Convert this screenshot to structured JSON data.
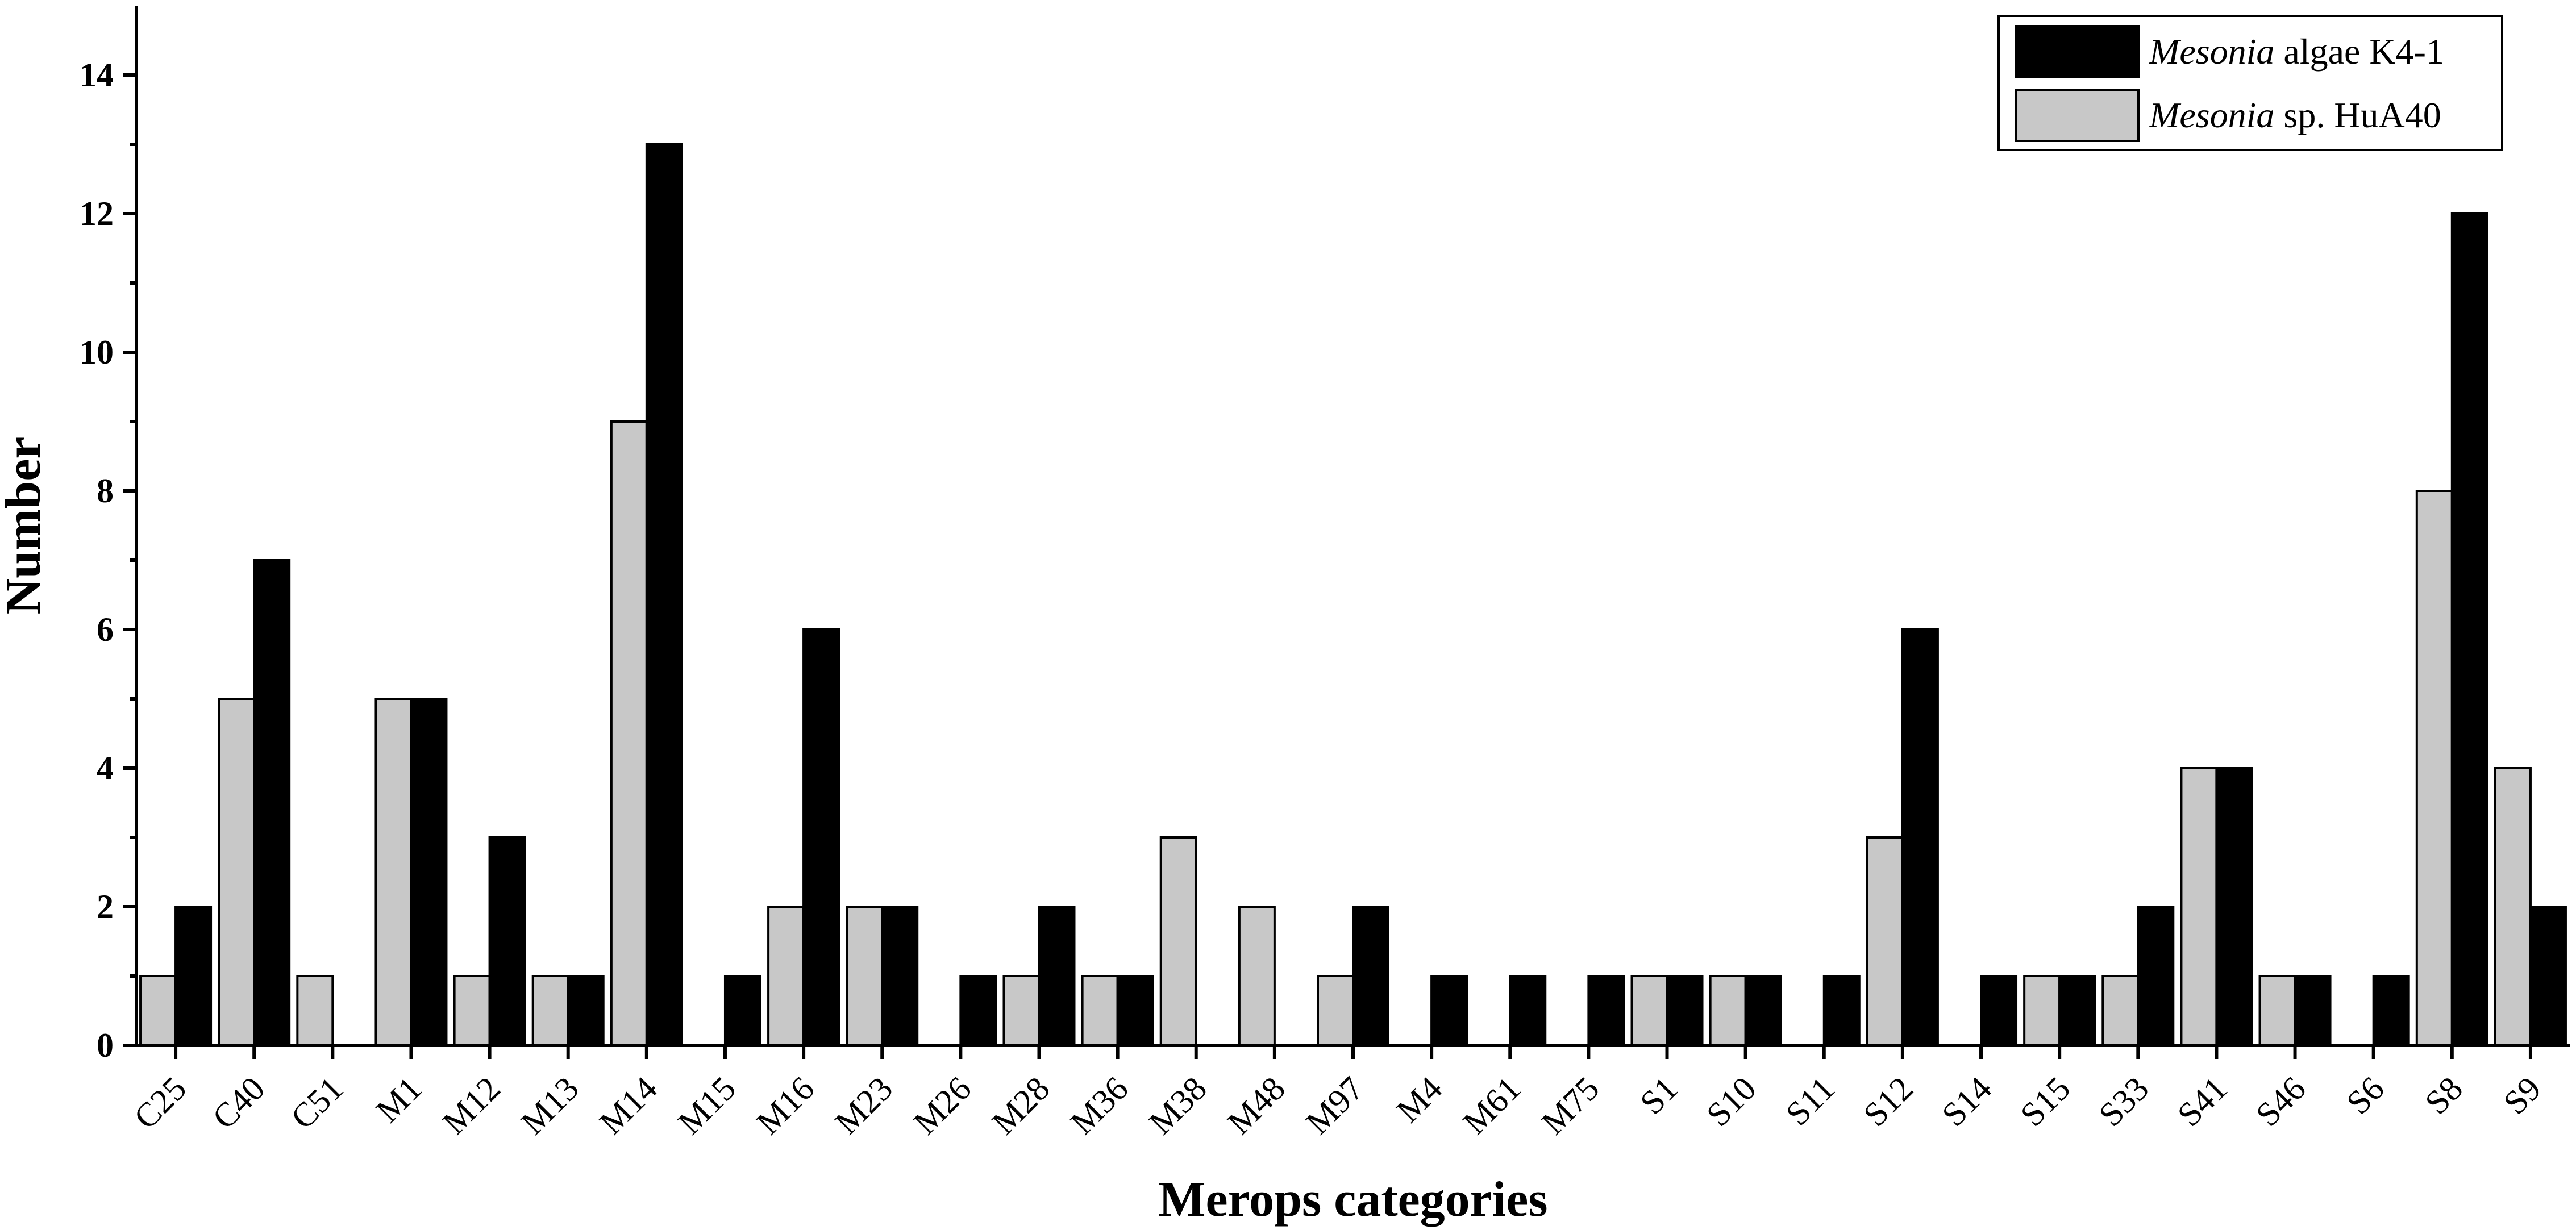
{
  "chart_data": {
    "type": "bar",
    "xlabel": "Merops categories",
    "ylabel": "Number",
    "ylim": [
      0,
      15
    ],
    "yticks": [
      0,
      2,
      4,
      6,
      8,
      10,
      12,
      14
    ],
    "grid": false,
    "legend_position": "top-right",
    "categories": [
      "C25",
      "C40",
      "C51",
      "M1",
      "M12",
      "M13",
      "M14",
      "M15",
      "M16",
      "M23",
      "M26",
      "M28",
      "M36",
      "M38",
      "M48",
      "M97",
      "M4",
      "M61",
      "M75",
      "S1",
      "S10",
      "S11",
      "S12",
      "S14",
      "S15",
      "S33",
      "S41",
      "S46",
      "S6",
      "S8",
      "S9"
    ],
    "series": [
      {
        "name": "Mesonia sp. HuA40",
        "name_italic": "Mesonia",
        "name_rest": " sp. HuA40",
        "color": "#c8c8c8",
        "values": [
          1,
          5,
          1,
          5,
          1,
          1,
          9,
          0,
          2,
          2,
          0,
          1,
          1,
          3,
          2,
          1,
          0,
          0,
          0,
          1,
          1,
          0,
          3,
          0,
          1,
          1,
          4,
          1,
          0,
          8,
          4
        ]
      },
      {
        "name": "Mesonia algae K4-1",
        "name_italic": "Mesonia",
        "name_rest": " algae K4-1",
        "color": "#000000",
        "values": [
          2,
          7,
          0,
          5,
          3,
          1,
          13,
          1,
          6,
          2,
          1,
          2,
          1,
          0,
          0,
          2,
          1,
          1,
          1,
          1,
          1,
          1,
          6,
          1,
          1,
          2,
          4,
          1,
          1,
          12,
          2
        ]
      }
    ]
  }
}
